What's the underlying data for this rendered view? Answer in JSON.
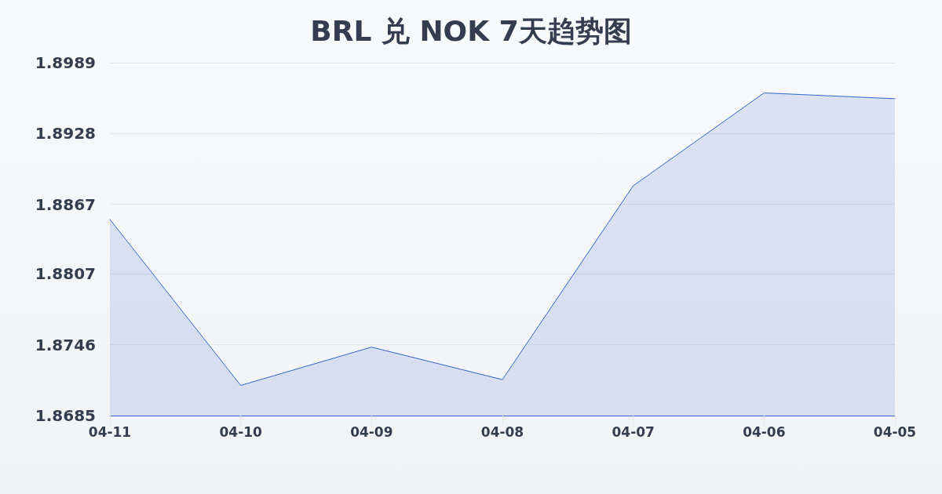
{
  "chart_data": {
    "type": "area",
    "title": "BRL 兑 NOK 7天趋势图",
    "categories": [
      "04-11",
      "04-10",
      "04-09",
      "04-08",
      "04-07",
      "04-06",
      "04-05"
    ],
    "series": [
      {
        "color": "#3366cc",
        "values": [
          1.8854,
          1.8711,
          1.8744,
          1.8716,
          1.8883,
          1.8963,
          1.8958
        ]
      }
    ],
    "ylim": [
      1.8685,
      1.8989
    ],
    "yticks": [
      1.8685,
      1.8746,
      1.8807,
      1.8867,
      1.8928,
      1.8989
    ],
    "grid": "y"
  }
}
